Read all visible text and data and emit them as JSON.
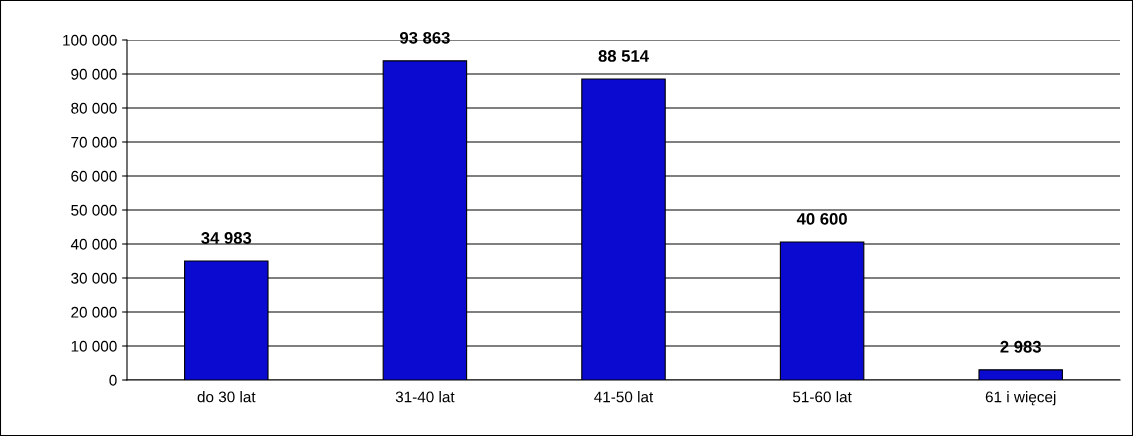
{
  "chart_data": {
    "type": "bar",
    "categories": [
      "do 30 lat",
      "31-40 lat",
      "41-50 lat",
      "51-60 lat",
      "61 i więcej"
    ],
    "values": [
      34983,
      93863,
      88514,
      40600,
      2983
    ],
    "value_labels": [
      "34 983",
      "93 863",
      "88 514",
      "40 600",
      "2 983"
    ],
    "color": "#0a0ad0",
    "ylim": [
      0,
      100000
    ],
    "yticks": [
      0,
      {
        "value": 10000,
        "label": "10 000"
      },
      {
        "value": 20000,
        "label": "20 000"
      },
      {
        "value": 30000,
        "label": "30 000"
      },
      {
        "value": 40000,
        "label": "40 000"
      },
      {
        "value": 50000,
        "label": "50 000"
      },
      {
        "value": 60000,
        "label": "60 000"
      },
      {
        "value": 70000,
        "label": "70 000"
      },
      {
        "value": 80000,
        "label": "80 000"
      },
      {
        "value": 90000,
        "label": "90 000"
      },
      {
        "value": 100000,
        "label": "100 000"
      }
    ],
    "grid": "y"
  }
}
